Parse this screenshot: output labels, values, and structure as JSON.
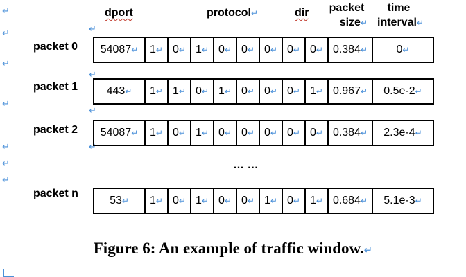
{
  "headers": {
    "dport": "dport",
    "protocol": "protocol",
    "dir": "dir",
    "packet_size_1": "packet",
    "packet_size_2": "size",
    "time_interval_1": "time",
    "time_interval_2": "interval"
  },
  "return_mark": "↵",
  "rows": [
    {
      "label": "packet 0",
      "cells": [
        "54087",
        "1",
        "0",
        "1",
        "0",
        "0",
        "0",
        "0",
        "0",
        "0.384",
        "0"
      ]
    },
    {
      "label": "packet 1",
      "cells": [
        "443",
        "1",
        "1",
        "0",
        "1",
        "0",
        "0",
        "0",
        "1",
        "0.967",
        "0.5e-2"
      ]
    },
    {
      "label": "packet 2",
      "cells": [
        "54087",
        "1",
        "0",
        "1",
        "0",
        "0",
        "0",
        "0",
        "0",
        "0.384",
        "2.3e-4"
      ]
    },
    {
      "label": "packet n",
      "cells": [
        "53",
        "1",
        "0",
        "1",
        "0",
        "0",
        "1",
        "0",
        "1",
        "0.684",
        "5.1e-3"
      ]
    }
  ],
  "ellipsis": "… …",
  "caption": "Figure 6: An example of traffic window."
}
